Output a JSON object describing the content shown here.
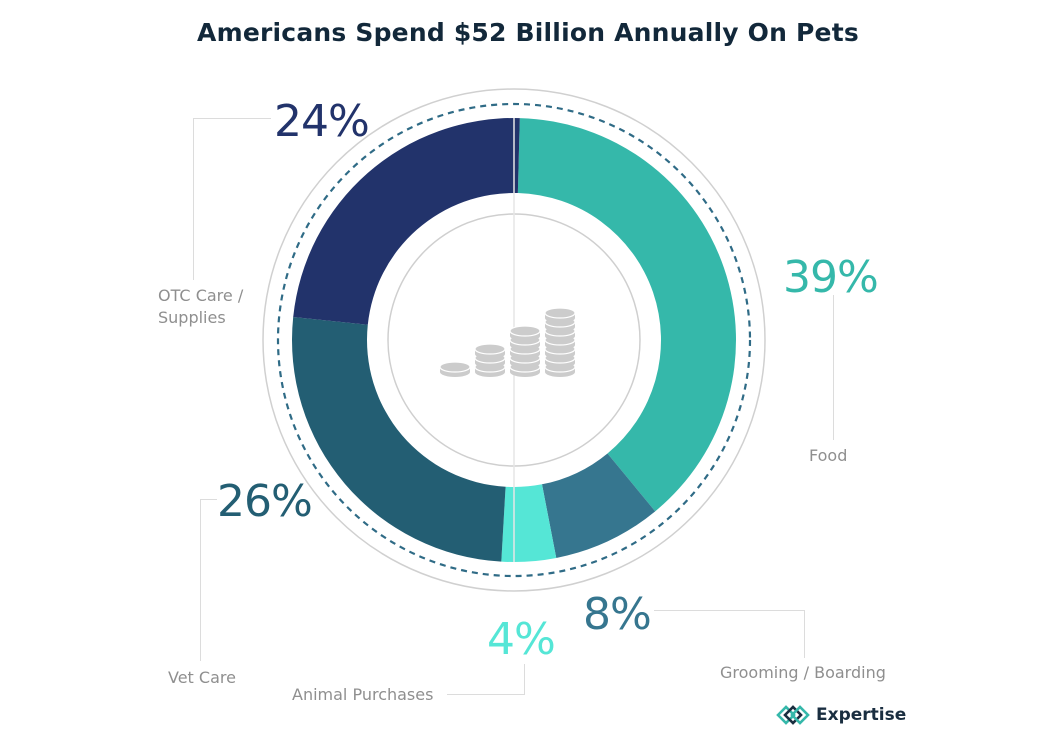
{
  "chart_data": {
    "type": "pie",
    "variant": "donut",
    "title": "Americans Spend $52 Billion Annually On Pets",
    "start_angle_deg": 1.5,
    "direction": "clockwise",
    "slices": [
      {
        "label": "Food",
        "value": 39,
        "display": "39%",
        "color": "#35b8aa"
      },
      {
        "label": "Grooming / Boarding",
        "value": 8,
        "display": "8%",
        "color": "#36768f"
      },
      {
        "label": "Animal Purchases",
        "value": 4,
        "display": "4%",
        "color": "#55e6d6"
      },
      {
        "label": "Vet Care",
        "value": 26,
        "display": "26%",
        "color": "#235e73"
      },
      {
        "label": "OTC Care / Supplies",
        "value": 24,
        "display": "24%",
        "color": "#22336b"
      }
    ],
    "center_icon": "coin-stacks-icon"
  },
  "labels": {
    "otc_line1": "OTC Care /",
    "otc_line2": "Supplies"
  },
  "colors": {
    "title": "#12283a",
    "label_gray": "#8f8f8f",
    "dashed_ring": "#2f6b86",
    "ring_gray": "#d0d0d0",
    "coin_gray": "#cccccc"
  },
  "brand": {
    "name": "Expertise",
    "icon": "expertise-diamond-logo-icon"
  }
}
